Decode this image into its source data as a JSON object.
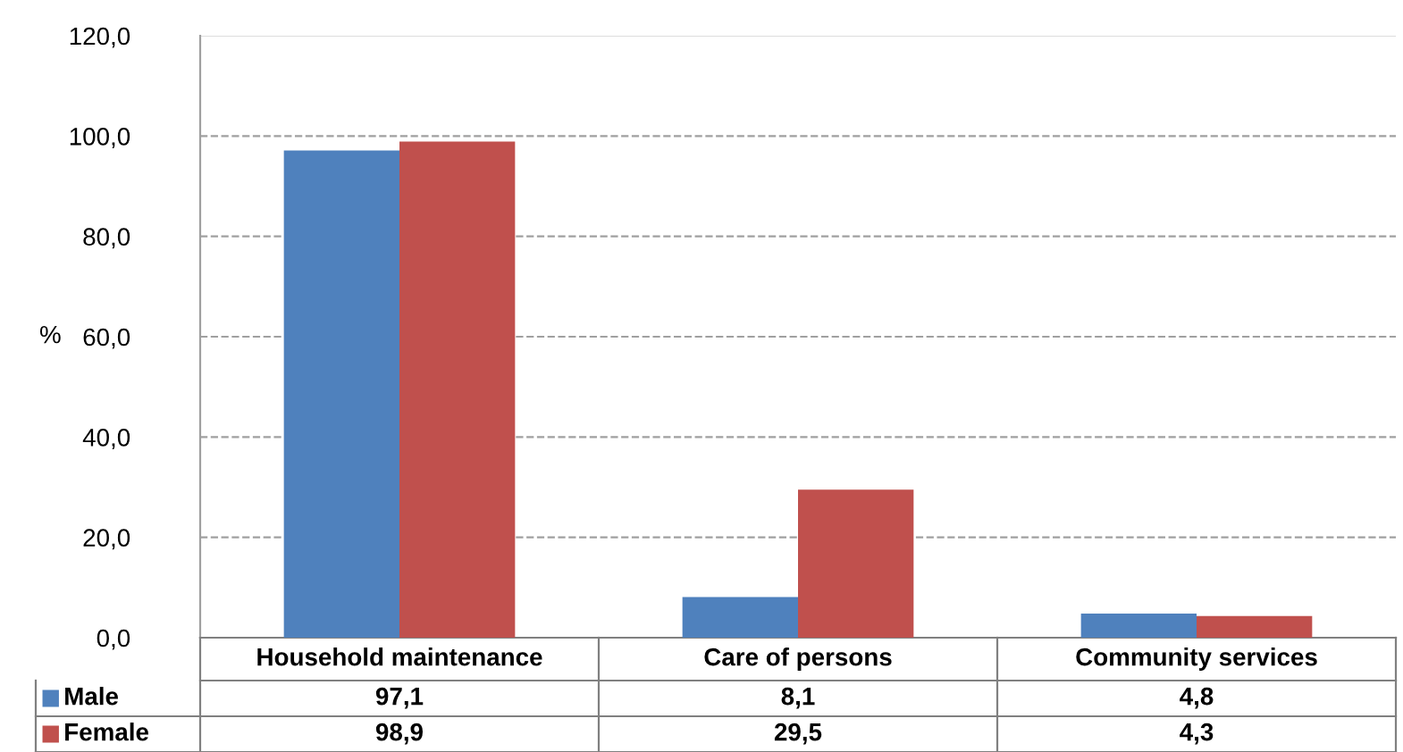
{
  "chart_data": {
    "type": "bar",
    "ylabel": "%",
    "categories": [
      "Household maintenance",
      "Care of persons",
      "Community services"
    ],
    "series": [
      {
        "name": "Male",
        "color": "#4f81bd",
        "values": [
          97.1,
          8.1,
          4.8
        ],
        "value_labels": [
          "97,1",
          "8,1",
          "4,8"
        ]
      },
      {
        "name": "Female",
        "color": "#c0504d",
        "values": [
          98.9,
          29.5,
          4.3
        ],
        "value_labels": [
          "98,9",
          "29,5",
          "4,3"
        ]
      }
    ],
    "ylim": [
      0,
      120
    ],
    "yticks": [
      {
        "value": 0,
        "label": "0,0"
      },
      {
        "value": 20,
        "label": "20,0"
      },
      {
        "value": 40,
        "label": "40,0"
      },
      {
        "value": 60,
        "label": "60,0"
      },
      {
        "value": 80,
        "label": "80,0"
      },
      {
        "value": 100,
        "label": "100,0"
      },
      {
        "value": 120,
        "label": "120,0"
      }
    ],
    "grid": "y",
    "legend": "bottom"
  }
}
